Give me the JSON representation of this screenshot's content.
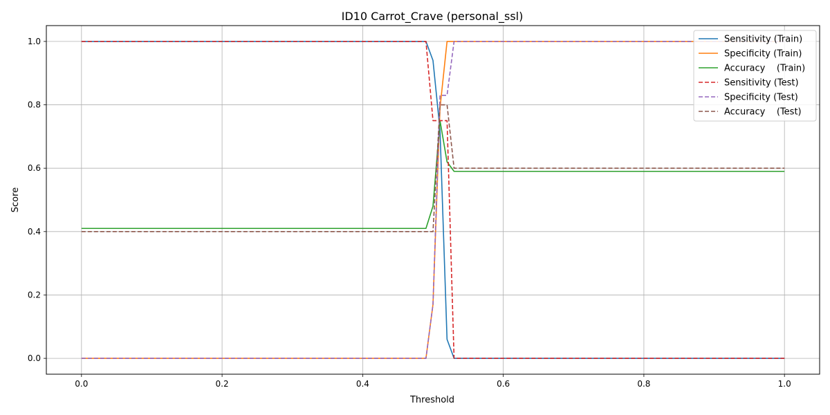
{
  "chart_data": {
    "type": "line",
    "title": "ID10 Carrot_Crave (personal_ssl)",
    "xlabel": "Threshold",
    "ylabel": "Score",
    "xlim": [
      -0.05,
      1.05
    ],
    "ylim": [
      -0.05,
      1.05
    ],
    "xticks": [
      0.0,
      0.2,
      0.4,
      0.6,
      0.8,
      1.0
    ],
    "xtick_labels": [
      "0.0",
      "0.2",
      "0.4",
      "0.6",
      "0.8",
      "1.0"
    ],
    "yticks": [
      0.0,
      0.2,
      0.4,
      0.6,
      0.8,
      1.0
    ],
    "ytick_labels": [
      "0.0",
      "0.2",
      "0.4",
      "0.6",
      "0.8",
      "1.0"
    ],
    "grid": true,
    "legend_position": "top-right",
    "series": [
      {
        "name": "Sensitivity (Train)",
        "color": "#1f77b4",
        "dash": "solid",
        "points": [
          [
            0.0,
            1.0
          ],
          [
            0.49,
            1.0
          ],
          [
            0.5,
            0.94
          ],
          [
            0.51,
            0.72
          ],
          [
            0.52,
            0.06
          ],
          [
            0.53,
            0.0
          ],
          [
            1.0,
            0.0
          ]
        ]
      },
      {
        "name": "Specificity (Train)",
        "color": "#ff7f0e",
        "dash": "solid",
        "points": [
          [
            0.0,
            0.0
          ],
          [
            0.49,
            0.0
          ],
          [
            0.5,
            0.17
          ],
          [
            0.51,
            0.79
          ],
          [
            0.52,
            1.0
          ],
          [
            0.53,
            1.0
          ],
          [
            1.0,
            1.0
          ]
        ]
      },
      {
        "name": "Accuracy    (Train)",
        "color": "#2ca02c",
        "dash": "solid",
        "points": [
          [
            0.0,
            0.41
          ],
          [
            0.49,
            0.41
          ],
          [
            0.5,
            0.48
          ],
          [
            0.51,
            0.75
          ],
          [
            0.52,
            0.62
          ],
          [
            0.53,
            0.59
          ],
          [
            1.0,
            0.59
          ]
        ]
      },
      {
        "name": "Sensitivity (Test)",
        "color": "#d62728",
        "dash": "dashed",
        "points": [
          [
            0.0,
            1.0
          ],
          [
            0.49,
            1.0
          ],
          [
            0.5,
            0.75
          ],
          [
            0.51,
            0.75
          ],
          [
            0.52,
            0.75
          ],
          [
            0.53,
            0.0
          ],
          [
            1.0,
            0.0
          ]
        ]
      },
      {
        "name": "Specificity (Test)",
        "color": "#9467bd",
        "dash": "dashed",
        "points": [
          [
            0.0,
            0.0
          ],
          [
            0.49,
            0.0
          ],
          [
            0.5,
            0.17
          ],
          [
            0.51,
            0.83
          ],
          [
            0.52,
            0.83
          ],
          [
            0.53,
            1.0
          ],
          [
            1.0,
            1.0
          ]
        ]
      },
      {
        "name": "Accuracy    (Test)",
        "color": "#8c564b",
        "dash": "dashed",
        "points": [
          [
            0.0,
            0.4
          ],
          [
            0.49,
            0.4
          ],
          [
            0.5,
            0.4
          ],
          [
            0.51,
            0.8
          ],
          [
            0.52,
            0.8
          ],
          [
            0.53,
            0.6
          ],
          [
            1.0,
            0.6
          ]
        ]
      }
    ]
  }
}
